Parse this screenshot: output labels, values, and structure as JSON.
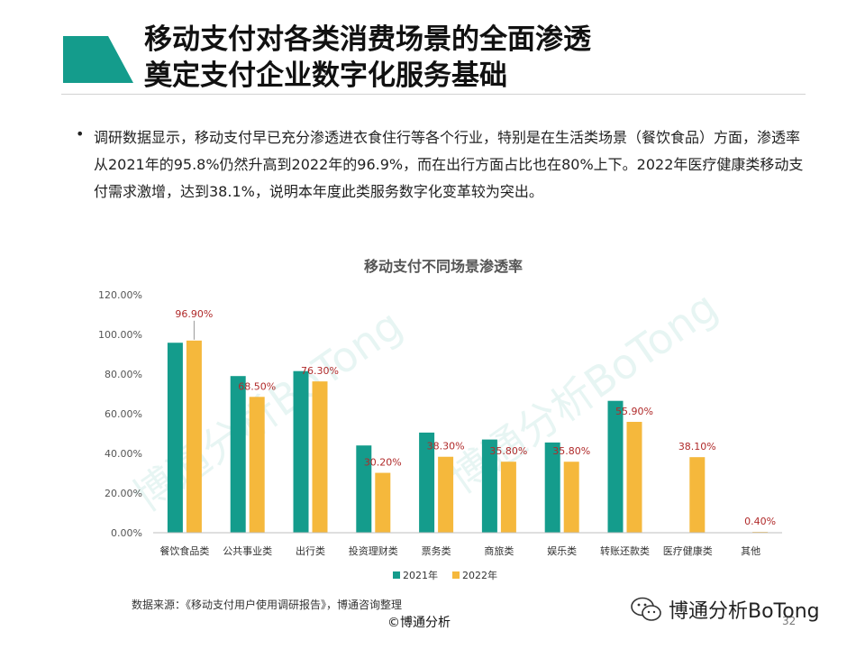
{
  "slide": {
    "title_line1": "移动支付对各类消费场景的全面渗透",
    "title_line2": "奠定支付企业数字化服务基础",
    "bullet_symbol": "•",
    "body": "调研数据显示，移动支付早已充分渗透进衣食住行等各个行业，特别是在生活类场景（餐饮食品）方面，渗透率从2021年的95.8%仍然升高到2022年的96.9%，而在出行方面占比也在80%上下。2022年医疗健康类移动支付需求激增，达到38.1%，说明本年度此类服务数字化变革较为突出。",
    "source": "数据来源：《移动支付用户使用调研报告》，博通咨询整理",
    "copyright": "©博通分析",
    "brand": "博通分析BoTong",
    "page_number": "32",
    "watermark_text": "博通分析BoTong"
  },
  "colors": {
    "accent_logo": "#149c8c",
    "series_2021": "#149c8c",
    "series_2022": "#f5b83c",
    "data_label": "#b02a2a"
  },
  "icons": {
    "brand_icon": "wechat-icon"
  },
  "chart_data": {
    "type": "bar",
    "title": "移动支付不同场景渗透率",
    "categories": [
      "餐饮食品类",
      "公共事业类",
      "出行类",
      "投资理财类",
      "票务类",
      "商旅类",
      "娱乐类",
      "转账还款类",
      "医疗健康类",
      "其他"
    ],
    "series": [
      {
        "name": "2021年",
        "values": [
          95.8,
          79.0,
          81.5,
          44.0,
          50.5,
          47.0,
          45.5,
          66.5,
          null,
          null
        ],
        "labels": [
          "",
          "",
          "",
          "",
          "",
          "",
          "",
          "",
          "",
          ""
        ]
      },
      {
        "name": "2022年",
        "values": [
          96.9,
          68.5,
          76.3,
          30.2,
          38.3,
          35.8,
          35.8,
          55.9,
          38.1,
          0.4
        ],
        "labels": [
          "96.90%",
          "68.50%",
          "76.30%",
          "30.20%",
          "38.30%",
          "35.80%",
          "35.80%",
          "55.90%",
          "38.10%",
          "0.40%"
        ]
      }
    ],
    "yticks": [
      "0.00%",
      "20.00%",
      "40.00%",
      "60.00%",
      "80.00%",
      "100.00%",
      "120.00%"
    ],
    "ylim": [
      0,
      120
    ],
    "grid": false,
    "legend": "bottom"
  }
}
